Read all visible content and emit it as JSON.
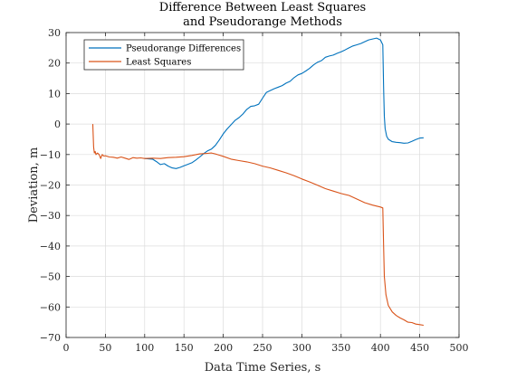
{
  "chart_data": {
    "type": "line",
    "title": [
      "Difference Between Least Squares",
      "and Pseudorange Methods"
    ],
    "xlabel": "Data Time Series, s",
    "ylabel": "Deviation, m",
    "xlim": [
      0,
      500
    ],
    "ylim": [
      -70,
      30
    ],
    "xticks": [
      0,
      50,
      100,
      150,
      200,
      250,
      300,
      350,
      400,
      450,
      500
    ],
    "yticks": [
      -70,
      -60,
      -50,
      -40,
      -30,
      -20,
      -10,
      0,
      10,
      20,
      30
    ],
    "grid": true,
    "legend_position": "top-left",
    "series": [
      {
        "name": "Pseudorange Differences",
        "color": "#0072BD",
        "x": [
          100,
          110,
          115,
          120,
          125,
          130,
          135,
          140,
          145,
          150,
          155,
          160,
          165,
          170,
          175,
          180,
          185,
          190,
          195,
          200,
          205,
          210,
          215,
          220,
          225,
          230,
          235,
          240,
          245,
          250,
          255,
          260,
          265,
          270,
          275,
          280,
          285,
          290,
          295,
          300,
          305,
          310,
          315,
          320,
          325,
          330,
          335,
          340,
          345,
          350,
          355,
          360,
          365,
          370,
          375,
          380,
          385,
          390,
          395,
          400,
          403,
          404,
          405,
          406,
          408,
          410,
          415,
          420,
          425,
          430,
          435,
          440,
          445,
          450,
          455
        ],
        "values": [
          -11.3,
          -11.5,
          -12.3,
          -13.3,
          -13.0,
          -13.8,
          -14.4,
          -14.6,
          -14.2,
          -13.7,
          -13.2,
          -12.7,
          -11.8,
          -10.8,
          -9.7,
          -8.8,
          -8.2,
          -7.0,
          -5.2,
          -3.2,
          -1.6,
          -0.2,
          1.2,
          2.1,
          3.3,
          4.8,
          5.8,
          6.0,
          6.5,
          8.5,
          10.4,
          11.0,
          11.6,
          12.1,
          12.6,
          13.4,
          14.0,
          15.2,
          16.1,
          16.6,
          17.4,
          18.3,
          19.4,
          20.3,
          20.8,
          21.9,
          22.3,
          22.6,
          23.2,
          23.7,
          24.3,
          25.0,
          25.6,
          26.0,
          26.4,
          27.0,
          27.6,
          27.9,
          28.2,
          27.6,
          26.0,
          12.0,
          2.5,
          -1.5,
          -4.0,
          -5.0,
          -5.8,
          -6.0,
          -6.1,
          -6.3,
          -6.2,
          -5.7,
          -5.1,
          -4.6,
          -4.5
        ]
      },
      {
        "name": "Least Squares",
        "color": "#D95319",
        "x": [
          34,
          35,
          36,
          37,
          38,
          40,
          42,
          44,
          46,
          48,
          50,
          55,
          60,
          65,
          70,
          75,
          80,
          85,
          90,
          95,
          100,
          110,
          120,
          130,
          140,
          150,
          160,
          170,
          180,
          185,
          190,
          195,
          200,
          210,
          220,
          230,
          240,
          250,
          260,
          270,
          280,
          290,
          300,
          310,
          320,
          330,
          340,
          350,
          360,
          370,
          380,
          390,
          400,
          403,
          404,
          405,
          407,
          410,
          415,
          420,
          425,
          430,
          435,
          440,
          445,
          450,
          455
        ],
        "values": [
          0,
          -7.5,
          -9.5,
          -9.0,
          -10.0,
          -9.5,
          -10.0,
          -11.3,
          -10.0,
          -10.5,
          -10.4,
          -10.8,
          -10.9,
          -11.2,
          -10.8,
          -11.2,
          -11.6,
          -11.0,
          -11.2,
          -11.1,
          -11.3,
          -11.2,
          -11.3,
          -11.0,
          -10.9,
          -10.7,
          -10.3,
          -9.8,
          -9.6,
          -9.5,
          -9.8,
          -10.2,
          -10.6,
          -11.5,
          -12.0,
          -12.4,
          -13.0,
          -13.8,
          -14.4,
          -15.2,
          -16.0,
          -16.9,
          -18.0,
          -19.0,
          -20.1,
          -21.2,
          -22.0,
          -22.8,
          -23.4,
          -24.6,
          -25.8,
          -26.6,
          -27.2,
          -27.5,
          -40.0,
          -50.0,
          -56.0,
          -59.5,
          -61.6,
          -62.8,
          -63.6,
          -64.2,
          -65.0,
          -65.1,
          -65.6,
          -65.8,
          -66.0
        ]
      }
    ]
  }
}
